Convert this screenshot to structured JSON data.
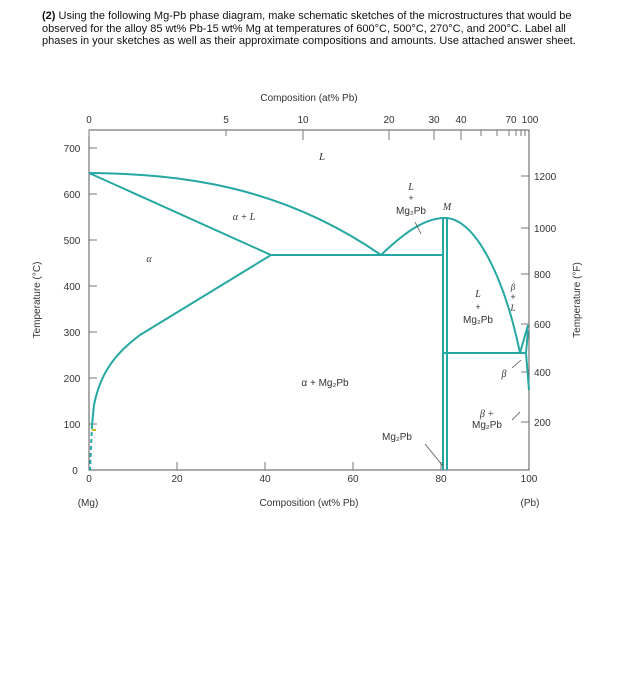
{
  "question": {
    "number": "(2)",
    "text": "Using the following Mg-Pb phase diagram, make schematic sketches of the microstructures that would be observed for the alloy 85 wt% Pb-15 wt% Mg at temperatures of 600°C, 500°C, 270°C, and 200°C. Label all phases in your sketches as well as their approximate compositions and amounts. Use attached answer sheet."
  },
  "diagram": {
    "top_axis_title": "Composition (at% Pb)",
    "top_ticks": [
      "0",
      "5",
      "10",
      "20",
      "30",
      "40",
      "70",
      "100"
    ],
    "bottom_axis_title": "Composition (wt% Pb)",
    "bottom_ticks": [
      "0",
      "20",
      "40",
      "60",
      "80",
      "100"
    ],
    "left_axis_title": "Temperature (°C)",
    "left_ticks": [
      "0",
      "100",
      "200",
      "300",
      "400",
      "500",
      "600",
      "700"
    ],
    "right_axis_title": "Temperature (°F)",
    "right_ticks": [
      "200",
      "400",
      "600",
      "800",
      "1000",
      "1200"
    ],
    "end_left": "(Mg)",
    "end_right": "(Pb)",
    "regions": {
      "liquid": "L",
      "alpha": "α",
      "alpha_plus_liquid": "α + L",
      "alpha_plus_compound": "α + Mg₂Pb",
      "liquid_plus_compound_1": "L",
      "liquid_plus_compound_2": "+",
      "liquid_plus_compound_3": "Mg₂Pb",
      "max_point": "M",
      "right_liquid_1": "L",
      "right_liquid_2": "+",
      "right_liquid_3": "Mg₂Pb",
      "beta_liquid_1": "β",
      "beta_liquid_2": "+",
      "beta_liquid_3": "L",
      "beta": "β",
      "beta_compound_1": "β +",
      "beta_compound_2": "Mg₂Pb",
      "compound": "Mg₂Pb"
    },
    "colors": {
      "phase_lines": "#26a8a2",
      "axes": "#555555",
      "text": "#333333"
    }
  }
}
